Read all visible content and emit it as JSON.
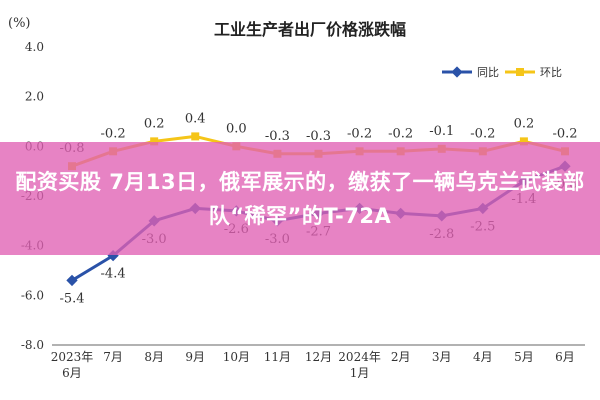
{
  "chart_data": {
    "type": "line",
    "title": "工业生产者出厂价格涨跌幅",
    "y_unit": "(%)",
    "ylim": [
      -8.0,
      4.0
    ],
    "y_ticks": [
      "4.0",
      "2.0",
      "0.0",
      "-2.0",
      "-4.0",
      "-6.0",
      "-8.0"
    ],
    "y_tick_values": [
      4,
      2,
      0,
      -2,
      -4,
      -6,
      -8
    ],
    "categories": [
      "2023年\n6月",
      "7月",
      "8月",
      "9月",
      "10月",
      "11月",
      "12月",
      "2024年\n1月",
      "2月",
      "3月",
      "4月",
      "5月",
      "6月"
    ],
    "series": [
      {
        "name": "同比",
        "color": "#2a52a8",
        "values": [
          -5.4,
          -4.4,
          -3.0,
          -2.5,
          -2.6,
          -3.0,
          -2.7,
          -2.5,
          -2.7,
          -2.8,
          -2.5,
          -1.4,
          -0.8
        ],
        "labels": [
          "-5.4",
          "-4.4",
          "-3.0",
          "",
          "-2.6",
          "-3.0",
          "-2.7",
          "",
          "",
          "-2.8",
          "-2.5",
          "-1.4",
          "-0.8"
        ]
      },
      {
        "name": "环比",
        "color": "#f5c518",
        "values": [
          -0.8,
          -0.2,
          0.2,
          0.4,
          0.0,
          -0.3,
          -0.3,
          -0.2,
          -0.2,
          -0.1,
          -0.2,
          0.2,
          -0.2
        ],
        "labels": [
          "-0.8",
          "-0.2",
          "0.2",
          "0.4",
          "0.0",
          "-0.3",
          "-0.3",
          "-0.2",
          "-0.2",
          "-0.1",
          "-0.2",
          "0.2",
          "-0.2"
        ]
      }
    ],
    "legend_position": "top-right",
    "grid": false
  },
  "overlay": {
    "headline": "配资买股 7月13日，俄军展示的，缴获了一辆乌克兰武装部队“稀罕”的T-72A",
    "color": "#e060b4"
  }
}
